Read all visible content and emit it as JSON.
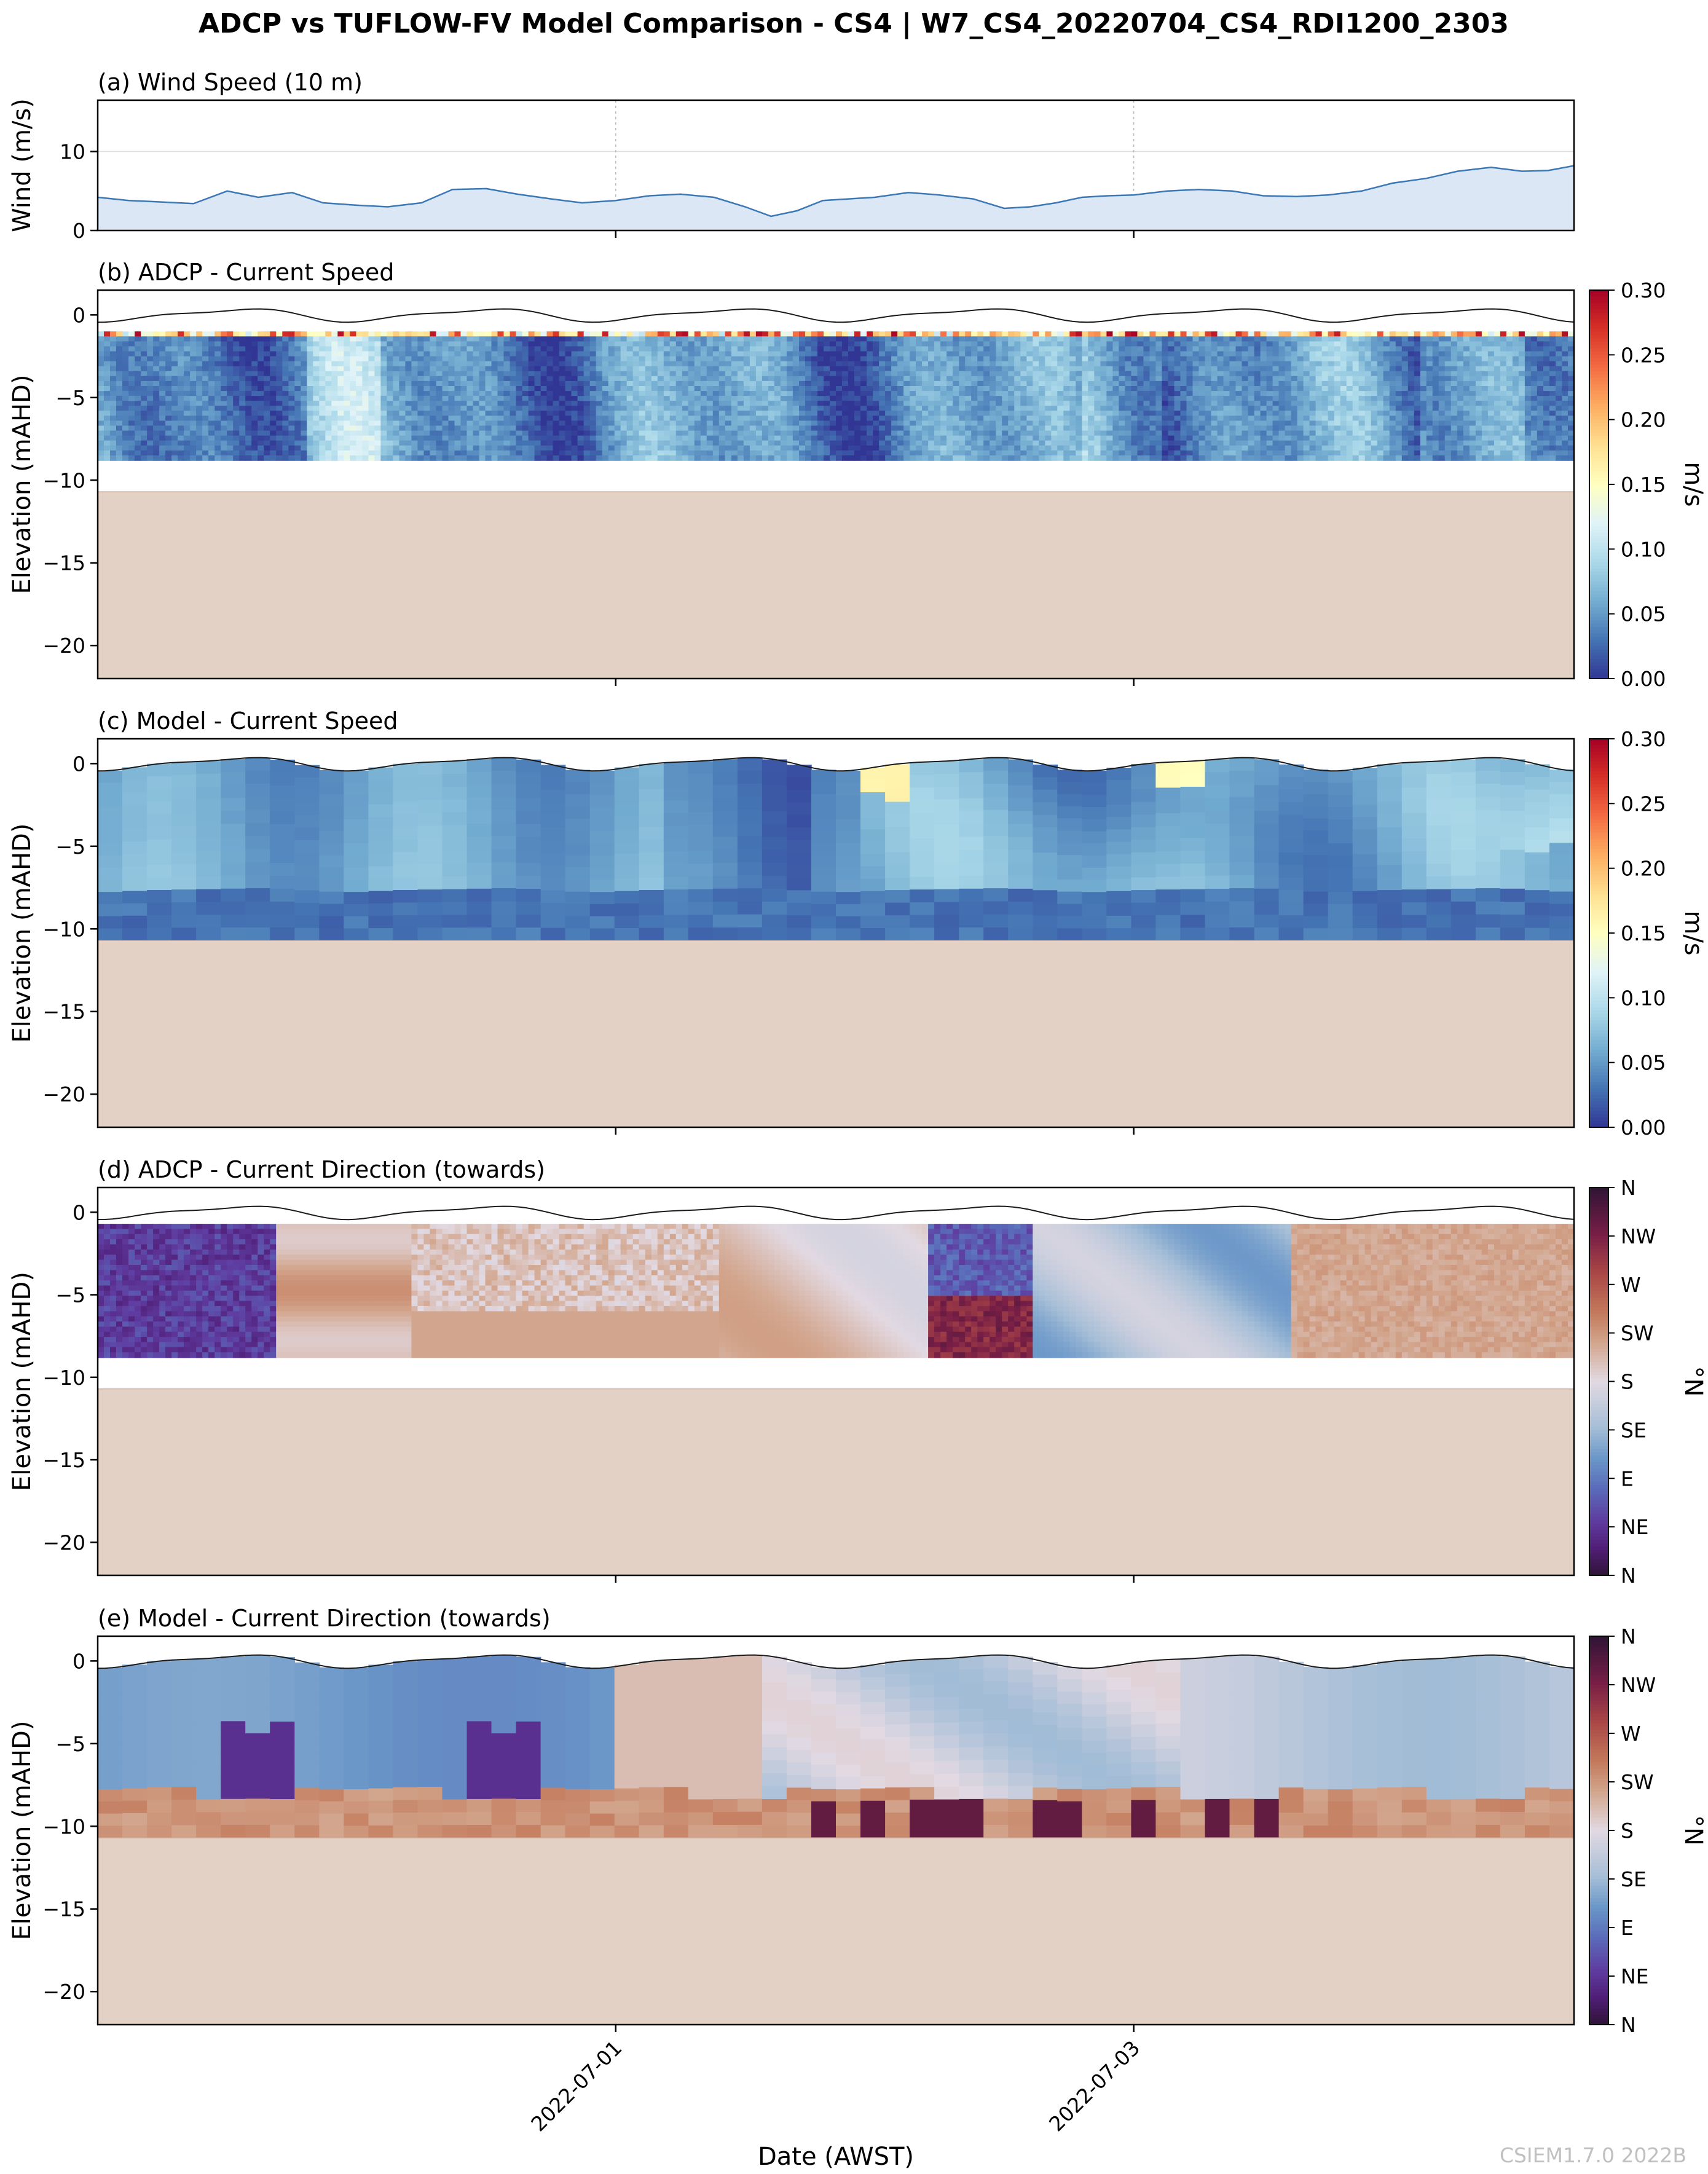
{
  "figure": {
    "title": "ADCP vs TUFLOW-FV Model Comparison - CS4 | W7_CS4_20220704_CS4_RDI1200_2303",
    "xlabel": "Date (AWST)",
    "watermark": "CSIEM1.7.0 2022B",
    "colors": {
      "wind_line": "#3b78b5",
      "wind_fill": "#dbe7f5",
      "seabed": "#e2d1c4",
      "surface_line": "#1a1a1a"
    }
  },
  "chart_data": [
    {
      "id": "a",
      "type": "area",
      "title": "(a) Wind Speed (10 m)",
      "ylabel": "Wind (m/s)",
      "ylim": [
        0,
        16.5
      ],
      "yticks": [
        "0",
        "10"
      ],
      "xlim_days": [
        -2,
        3.7
      ],
      "xticks": [
        {
          "value": 0,
          "label": "2022-07-01"
        },
        {
          "value": 2,
          "label": "2022-07-03"
        }
      ],
      "grid": true,
      "x": [
        -2.0,
        -1.88,
        -1.75,
        -1.63,
        -1.5,
        -1.38,
        -1.25,
        -1.13,
        -1.0,
        -0.88,
        -0.75,
        -0.63,
        -0.5,
        -0.38,
        -0.25,
        -0.13,
        0.0,
        0.13,
        0.25,
        0.38,
        0.5,
        0.6,
        0.7,
        0.8,
        0.9,
        1.0,
        1.13,
        1.25,
        1.38,
        1.5,
        1.6,
        1.7,
        1.8,
        1.9,
        2.0,
        2.13,
        2.25,
        2.38,
        2.5,
        2.63,
        2.75,
        2.88,
        3.0,
        3.13,
        3.25,
        3.38,
        3.5,
        3.6,
        3.7
      ],
      "values": [
        4.2,
        3.8,
        3.6,
        3.4,
        5.0,
        4.2,
        4.8,
        3.5,
        3.2,
        3.0,
        3.5,
        5.2,
        5.3,
        4.6,
        4.0,
        3.5,
        3.8,
        4.4,
        4.6,
        4.2,
        3.0,
        1.8,
        2.5,
        3.8,
        4.0,
        4.2,
        4.8,
        4.5,
        4.0,
        2.8,
        3.0,
        3.5,
        4.2,
        4.4,
        4.5,
        5.0,
        5.2,
        5.0,
        4.4,
        4.3,
        4.5,
        5.0,
        6.0,
        6.6,
        7.5,
        8.0,
        7.5,
        7.6,
        8.2
      ]
    },
    {
      "id": "b",
      "type": "heatmap",
      "title": "(b) ADCP - Current Speed",
      "ylabel": "Elevation (mAHD)",
      "ylim": [
        -22,
        1.5
      ],
      "yticks": [
        "0",
        "−5",
        "−10",
        "−15",
        "−20"
      ],
      "colorbar": {
        "label": "m/s",
        "min": 0,
        "max": 0.3,
        "ticks": [
          "0.00",
          "0.05",
          "0.10",
          "0.15",
          "0.20",
          "0.25",
          "0.30"
        ],
        "colormap": "RdYlBu_r"
      },
      "data_top_elevation": -1.0,
      "data_bottom_elevation": -8.8,
      "seabed_elevation": -10.7,
      "surface_amplitude_m": 0.35
    },
    {
      "id": "c",
      "type": "heatmap",
      "title": "(c) Model - Current Speed",
      "ylabel": "Elevation (mAHD)",
      "ylim": [
        -22,
        1.5
      ],
      "yticks": [
        "0",
        "−5",
        "−10",
        "−15",
        "−20"
      ],
      "colorbar": {
        "label": "m/s",
        "min": 0,
        "max": 0.3,
        "ticks": [
          "0.00",
          "0.05",
          "0.10",
          "0.15",
          "0.20",
          "0.25",
          "0.30"
        ],
        "colormap": "RdYlBu_r"
      },
      "data_top_elevation": 0.0,
      "data_bottom_elevation": -10.7,
      "seabed_elevation": -10.7,
      "surface_amplitude_m": 0.35
    },
    {
      "id": "d",
      "type": "heatmap",
      "title": "(d) ADCP - Current Direction (towards)",
      "ylabel": "Elevation (mAHD)",
      "ylim": [
        -22,
        1.5
      ],
      "yticks": [
        "0",
        "−5",
        "−10",
        "−15",
        "−20"
      ],
      "colorbar": {
        "label": "°N",
        "min": 0,
        "max": 360,
        "ticks": [
          "N",
          "NE",
          "E",
          "SE",
          "S",
          "SW",
          "W",
          "NW",
          "N"
        ],
        "colormap": "twilight_shifted"
      },
      "data_top_elevation": -0.7,
      "data_bottom_elevation": -8.8,
      "seabed_elevation": -10.7,
      "surface_amplitude_m": 0.35
    },
    {
      "id": "e",
      "type": "heatmap",
      "title": "(e) Model - Current Direction (towards)",
      "ylabel": "Elevation (mAHD)",
      "ylim": [
        -22,
        1.5
      ],
      "yticks": [
        "0",
        "−5",
        "−10",
        "−15",
        "−20"
      ],
      "colorbar": {
        "label": "°N",
        "min": 0,
        "max": 360,
        "ticks": [
          "N",
          "NE",
          "E",
          "SE",
          "S",
          "SW",
          "W",
          "NW",
          "N"
        ],
        "colormap": "twilight_shifted"
      },
      "data_top_elevation": 0.0,
      "data_bottom_elevation": -10.7,
      "seabed_elevation": -10.7,
      "surface_amplitude_m": 0.35
    }
  ]
}
